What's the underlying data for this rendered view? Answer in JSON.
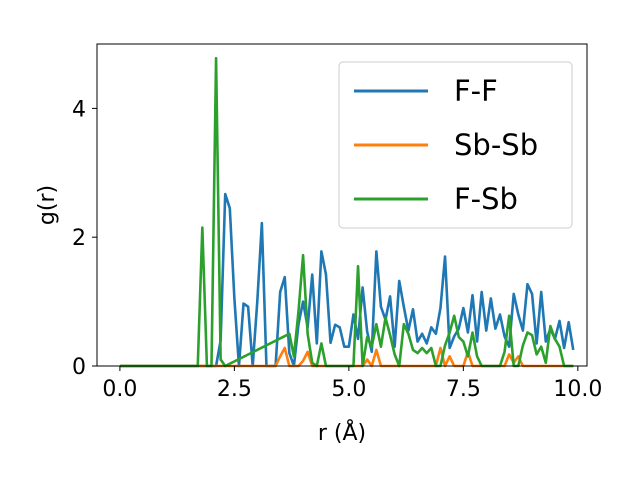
{
  "chart_data": {
    "type": "line",
    "xlabel": "r (Å)",
    "ylabel": "g(r)",
    "xlim": [
      -0.5,
      10.2
    ],
    "ylim": [
      0,
      5.0
    ],
    "xticks": [
      "0.0",
      "2.5",
      "5.0",
      "7.5",
      "10.0"
    ],
    "yticks": [
      "0",
      "2",
      "4"
    ],
    "legend_position": "top-right",
    "grid": false,
    "series": [
      {
        "name": "F-F",
        "color": "#1f77b4",
        "x": [
          0.0,
          2.0,
          2.1,
          2.2,
          2.3,
          2.4,
          2.5,
          2.6,
          2.7,
          2.8,
          2.9,
          3.0,
          3.1,
          3.2,
          3.3,
          3.4,
          3.5,
          3.6,
          3.7,
          3.8,
          3.9,
          4.0,
          4.1,
          4.2,
          4.3,
          4.4,
          4.5,
          4.6,
          4.7,
          4.8,
          4.9,
          5.0,
          5.1,
          5.2,
          5.3,
          5.4,
          5.5,
          5.6,
          5.7,
          5.8,
          5.9,
          6.0,
          6.1,
          6.2,
          6.3,
          6.4,
          6.5,
          6.6,
          6.7,
          6.8,
          6.9,
          7.0,
          7.1,
          7.2,
          7.3,
          7.4,
          7.5,
          7.6,
          7.7,
          7.8,
          7.9,
          8.0,
          8.1,
          8.2,
          8.3,
          8.4,
          8.5,
          8.6,
          8.7,
          8.8,
          8.9,
          9.0,
          9.1,
          9.2,
          9.3,
          9.4,
          9.5,
          9.6,
          9.7,
          9.8,
          9.9
        ],
        "y": [
          0,
          0,
          0,
          0.4,
          2.67,
          2.45,
          1.05,
          0,
          0.97,
          0.92,
          0,
          1.0,
          2.22,
          0,
          0,
          0,
          1.15,
          1.38,
          0.2,
          0,
          0.65,
          1.0,
          0.6,
          1.42,
          0.35,
          1.78,
          1.42,
          0.36,
          0.64,
          0.6,
          0.3,
          0.3,
          0.8,
          0.42,
          1.22,
          0.53,
          0.22,
          1.78,
          0.92,
          0.72,
          1.08,
          0.3,
          1.32,
          0.92,
          0.55,
          0.88,
          0.38,
          0.5,
          0.35,
          0.6,
          0.5,
          0.9,
          1.7,
          0.28,
          0.46,
          0.58,
          0.9,
          0.52,
          1.1,
          0.38,
          1.15,
          0.55,
          1.05,
          0.58,
          0.8,
          0.46,
          0.3,
          1.12,
          0.8,
          0.55,
          1.27,
          1.12,
          0.35,
          1.15,
          0.38,
          0.58,
          0.42,
          0.7,
          0.28,
          0.68,
          0.25
        ]
      },
      {
        "name": "Sb-Sb",
        "color": "#ff7f0e",
        "x": [
          0.0,
          3.4,
          3.5,
          3.6,
          3.7,
          3.9,
          4.0,
          4.1,
          4.2,
          4.3,
          5.0,
          5.3,
          5.4,
          5.5,
          5.6,
          5.7,
          5.8,
          6.9,
          7.0,
          7.1,
          7.2,
          7.3,
          7.5,
          7.6,
          7.7,
          8.4,
          8.5,
          8.6,
          8.7,
          8.8,
          9.9
        ],
        "y": [
          0,
          0,
          0.15,
          0.28,
          0.0,
          0.0,
          0.08,
          0.22,
          0.0,
          0.0,
          0.0,
          0.0,
          0.1,
          0.0,
          0.25,
          0.0,
          0.0,
          0.0,
          0.28,
          0.0,
          0.15,
          0.0,
          0.0,
          0.22,
          0.0,
          0.0,
          0.18,
          0.05,
          0.15,
          0.0,
          0.0
        ]
      },
      {
        "name": "F-Sb",
        "color": "#2ca02c",
        "x": [
          0.0,
          1.7,
          1.8,
          1.9,
          2.0,
          2.1,
          2.2,
          2.3,
          3.7,
          3.8,
          3.9,
          4.0,
          4.1,
          4.2,
          4.3,
          4.4,
          4.5,
          4.6,
          4.7,
          4.8,
          4.9,
          5.0,
          5.1,
          5.2,
          5.3,
          5.4,
          5.5,
          5.6,
          5.7,
          5.8,
          5.9,
          6.0,
          6.1,
          6.2,
          6.3,
          6.4,
          6.5,
          6.6,
          6.7,
          6.8,
          6.9,
          7.0,
          7.1,
          7.2,
          7.3,
          7.4,
          7.5,
          7.6,
          7.7,
          7.8,
          7.9,
          8.0,
          8.1,
          8.2,
          8.3,
          8.4,
          8.5,
          8.6,
          8.7,
          8.8,
          8.9,
          9.0,
          9.1,
          9.2,
          9.3,
          9.4,
          9.5,
          9.6,
          9.7,
          9.8,
          9.9
        ],
        "y": [
          0,
          0,
          2.15,
          0,
          0,
          4.78,
          0.1,
          0,
          0.5,
          0.15,
          0.85,
          1.72,
          0.5,
          0.05,
          0.0,
          0.35,
          0.0,
          0.0,
          0.0,
          0.0,
          0.0,
          0.0,
          0.0,
          1.55,
          0.0,
          0.45,
          0.3,
          0.65,
          0.3,
          0.75,
          0.48,
          0.18,
          0.0,
          0.65,
          0.5,
          0.25,
          0.2,
          0.28,
          0.2,
          0.28,
          0.0,
          0.0,
          0.32,
          0.52,
          0.78,
          0.45,
          0.38,
          0.15,
          0.52,
          0.15,
          0.0,
          0.0,
          0.0,
          0.0,
          0.0,
          0.22,
          0.78,
          0.0,
          0.0,
          0.32,
          0.52,
          0.48,
          0.18,
          0.3,
          0.05,
          0.62,
          0.42,
          0.3,
          0.0,
          0.0,
          0.0
        ]
      }
    ]
  }
}
